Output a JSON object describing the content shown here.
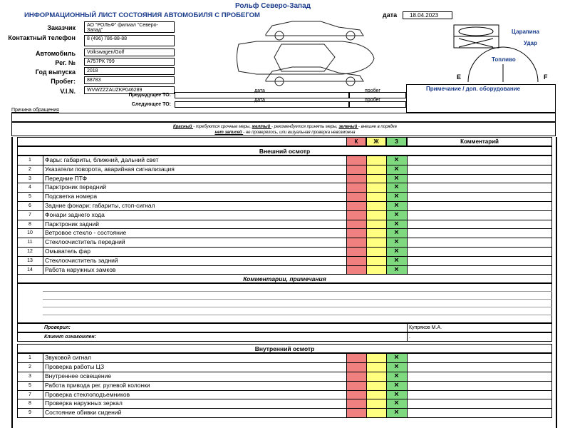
{
  "header": {
    "company": "Рольф Северо-Запад",
    "title": "ИНФОРМАЦИОННЫЙ ЛИСТ СОСТОЯНИЯ АВТОМОБИЛЯ С ПРОБЕГОМ",
    "date_label": "дата",
    "date": "18.04.2023"
  },
  "fields": [
    {
      "label": "Заказчик",
      "value": "АО \"РОЛЬФ\" филиал \"Северо-Запад\""
    },
    {
      "label": "Контактный телефон",
      "value": "8 (496) 786-88-88"
    },
    {
      "label": "Автомобиль",
      "value": "Volkswagen/Golf"
    },
    {
      "label": "Рег. №",
      "value": "А757РК 799"
    },
    {
      "label": "Год выпуска",
      "value": "2018"
    },
    {
      "label": "Пробег:",
      "value": "88783"
    },
    {
      "label": "V.I.N.",
      "value": "WVWZZZAUZKP046289"
    }
  ],
  "legend": {
    "scratch": "Царапина",
    "dent": "Удар",
    "fuel": "Топливо",
    "empty": "E",
    "full": "F"
  },
  "service": [
    {
      "label": "Предыдущее ТО:",
      "date": "дата",
      "mileage": "пробег"
    },
    {
      "label": "Следующее ТО:",
      "date": "дата",
      "mileage": "пробег"
    }
  ],
  "note_label": "Примечание / доп. оборудование",
  "reason_label": "Причина обращения",
  "key": {
    "lines": [
      [
        "Красный",
        "- требуются срочные меры,",
        "желтый",
        "- рекомендуется принять меры,",
        "зеленый",
        "- внешне в порядке"
      ],
      [
        "нет записей",
        "- не проверялось, или визуальная проверка невозможна"
      ]
    ]
  },
  "table": {
    "columns": [
      "К",
      "Ж",
      "З",
      "Комментарий"
    ],
    "sections": [
      {
        "title": "Внешний осмотр",
        "rows": [
          {
            "no": 1,
            "item": "Фары: габариты, ближний, дальний свет",
            "mark": "×"
          },
          {
            "no": 2,
            "item": "Указатели поворота, аварийная сигнализация",
            "mark": "×"
          },
          {
            "no": 3,
            "item": "Передние ПТФ",
            "mark": "×"
          },
          {
            "no": 4,
            "item": "Парктроник передний",
            "mark": "×"
          },
          {
            "no": 5,
            "item": "Подсветка номера",
            "mark": "×"
          },
          {
            "no": 6,
            "item": "Задние фонари: габариты, стоп-сигнал",
            "mark": "×"
          },
          {
            "no": 7,
            "item": "Фонари заднего хода",
            "mark": "×"
          },
          {
            "no": 8,
            "item": "Парктроник задний",
            "mark": "×"
          },
          {
            "no": 10,
            "item": "Ветровое стекло - состояние",
            "mark": "×"
          },
          {
            "no": 11,
            "item": "Стеклоочиститель передний",
            "mark": "×"
          },
          {
            "no": 12,
            "item": "Омыватель фар",
            "mark": "×"
          },
          {
            "no": 13,
            "item": "Стеклоочиститель задний",
            "mark": "×"
          },
          {
            "no": 14,
            "item": "Работа наружных замков",
            "mark": "×"
          }
        ]
      },
      {
        "title": "Внутренний осмотр",
        "rows": [
          {
            "no": 1,
            "item": "Звуковой сигнал",
            "mark": "×"
          },
          {
            "no": 2,
            "item": "Проверка работы ЦЗ",
            "mark": "×"
          },
          {
            "no": 3,
            "item": "Внутреннее освещение",
            "mark": "×"
          },
          {
            "no": 5,
            "item": "Работа привода рег. рулевой колонки",
            "mark": "×"
          },
          {
            "no": 7,
            "item": "Проверка стеклоподъемников",
            "mark": "×"
          },
          {
            "no": 8,
            "item": "Проверка наружных зеркал",
            "mark": "×"
          },
          {
            "no": 9,
            "item": "Состояние обивки сидений",
            "mark": "×"
          }
        ]
      }
    ]
  },
  "comments": {
    "title": "Комментарии, примечания",
    "checked_label": "Проверил:",
    "checked_by": "Купряков М.А.",
    "client_label": "Клиент ознакомлен:",
    "client": "."
  }
}
